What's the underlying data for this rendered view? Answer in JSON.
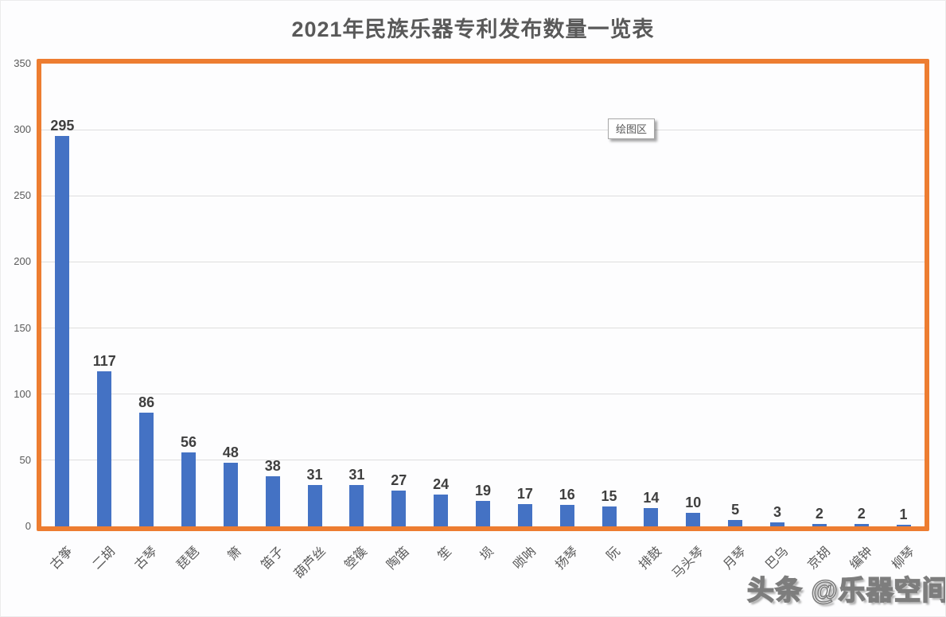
{
  "title": "2021年民族乐器专利发布数量一览表",
  "tooltip": {
    "label": "绘图区"
  },
  "watermark": "头条 @乐器空间",
  "colors": {
    "bar": "#4472c4",
    "plot_border": "#ed7d31",
    "gridline": "#dedede",
    "title_text": "#595959",
    "axis_text": "#595959",
    "data_label": "#3f3f3f",
    "background": "#fdfdfe"
  },
  "chart_data": {
    "type": "bar",
    "title": "2021年民族乐器专利发布数量一览表",
    "categories": [
      "古筝",
      "二胡",
      "古琴",
      "琵琶",
      "箫",
      "笛子",
      "葫芦丝",
      "箜篌",
      "陶笛",
      "笙",
      "埙",
      "唢呐",
      "扬琴",
      "阮",
      "排鼓",
      "马头琴",
      "月琴",
      "巴乌",
      "京胡",
      "编钟",
      "柳琴"
    ],
    "values": [
      295,
      117,
      86,
      56,
      48,
      38,
      31,
      31,
      27,
      24,
      19,
      17,
      16,
      15,
      14,
      10,
      5,
      3,
      2,
      2,
      1
    ],
    "xlabel": "",
    "ylabel": "",
    "ylim": [
      0,
      350
    ],
    "yticks": [
      0,
      50,
      100,
      150,
      200,
      250,
      300,
      350
    ],
    "grid": true,
    "legend": false,
    "data_labels": true,
    "category_label_rotation_deg": -45
  }
}
